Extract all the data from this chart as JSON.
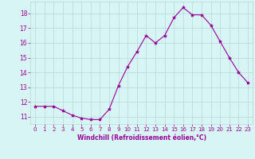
{
  "x": [
    0,
    1,
    2,
    3,
    4,
    5,
    6,
    7,
    8,
    9,
    10,
    11,
    12,
    13,
    14,
    15,
    16,
    17,
    18,
    19,
    20,
    21,
    22,
    23
  ],
  "y": [
    11.7,
    11.7,
    11.7,
    11.4,
    11.1,
    10.9,
    10.8,
    10.8,
    11.5,
    13.1,
    14.4,
    15.4,
    16.5,
    16.0,
    16.5,
    17.7,
    18.4,
    17.9,
    17.9,
    17.2,
    16.1,
    15.0,
    14.0,
    13.3
  ],
  "line_color": "#990099",
  "marker": "*",
  "marker_size": 3,
  "bg_color": "#d8f5f5",
  "grid_color": "#b8d8d8",
  "xlabel": "Windchill (Refroidissement éolien,°C)",
  "xlabel_color": "#990099",
  "tick_color": "#990099",
  "yticks": [
    11,
    12,
    13,
    14,
    15,
    16,
    17,
    18
  ],
  "xticks": [
    0,
    1,
    2,
    3,
    4,
    5,
    6,
    7,
    8,
    9,
    10,
    11,
    12,
    13,
    14,
    15,
    16,
    17,
    18,
    19,
    20,
    21,
    22,
    23
  ],
  "ylim": [
    10.5,
    18.8
  ],
  "xlim": [
    -0.5,
    23.5
  ]
}
